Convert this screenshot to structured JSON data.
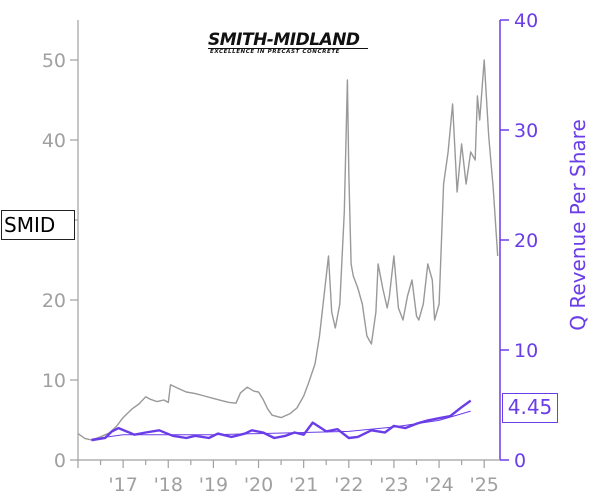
{
  "ticker": "SMID",
  "latest_value_label": "4.45",
  "logo": {
    "name": "SMITH-MIDLAND",
    "tagline": "EXCELLENCE IN PRECAST CONCRETE"
  },
  "colors": {
    "price_line": "#999999",
    "revenue_line": "#6a3de8",
    "revenue_trend": "#6a3de8",
    "left_axis": "#a0a0a0",
    "right_axis": "#6a3de8"
  },
  "chart_data": {
    "type": "line",
    "title": "",
    "xlabel": "",
    "ylabel_left": "",
    "ylabel_right": "Q Revenue Per Share",
    "x_ticks": [
      "'17",
      "'18",
      "'19",
      "'20",
      "'21",
      "'22",
      "'23",
      "'24",
      "'25"
    ],
    "x_tick_years": [
      2017,
      2018,
      2019,
      2020,
      2021,
      2022,
      2023,
      2024,
      2025
    ],
    "xlim": [
      2016.0,
      2025.35
    ],
    "y_left_ticks": [
      0,
      10,
      20,
      30,
      40,
      50
    ],
    "y_left_lim": [
      0,
      55
    ],
    "y_right_ticks": [
      0,
      10,
      20,
      30,
      40
    ],
    "y_right_lim": [
      0,
      40
    ],
    "grid": false,
    "series": [
      {
        "name": "SMID",
        "axis": "left",
        "x": [
          2016.0,
          2016.15,
          2016.3,
          2016.5,
          2016.7,
          2016.85,
          2017.0,
          2017.2,
          2017.35,
          2017.5,
          2017.6,
          2017.75,
          2017.9,
          2018.0,
          2018.05,
          2018.2,
          2018.4,
          2018.6,
          2018.8,
          2019.0,
          2019.2,
          2019.35,
          2019.5,
          2019.6,
          2019.75,
          2019.9,
          2020.0,
          2020.1,
          2020.2,
          2020.3,
          2020.5,
          2020.7,
          2020.85,
          2021.0,
          2021.1,
          2021.25,
          2021.35,
          2021.45,
          2021.55,
          2021.62,
          2021.7,
          2021.8,
          2021.9,
          2021.97,
          2022.0,
          2022.05,
          2022.1,
          2022.2,
          2022.3,
          2022.4,
          2022.5,
          2022.6,
          2022.65,
          2022.75,
          2022.85,
          2022.9,
          2023.0,
          2023.1,
          2023.2,
          2023.3,
          2023.4,
          2023.5,
          2023.55,
          2023.65,
          2023.75,
          2023.85,
          2023.9,
          2024.0,
          2024.1,
          2024.2,
          2024.3,
          2024.4,
          2024.5,
          2024.6,
          2024.7,
          2024.8,
          2024.85,
          2024.9,
          2025.0,
          2025.1,
          2025.2,
          2025.3
        ],
        "values": [
          3.3,
          2.7,
          2.5,
          2.9,
          3.4,
          4.2,
          5.3,
          6.4,
          7.0,
          7.9,
          7.6,
          7.3,
          7.5,
          7.2,
          9.4,
          9.0,
          8.5,
          8.3,
          8.0,
          7.7,
          7.4,
          7.2,
          7.1,
          8.4,
          9.1,
          8.6,
          8.5,
          7.6,
          6.4,
          5.6,
          5.3,
          5.8,
          6.5,
          8.0,
          9.5,
          12.0,
          15.5,
          20.5,
          25.5,
          18.5,
          16.5,
          19.5,
          31.0,
          47.5,
          36.0,
          24.5,
          23.0,
          21.5,
          19.5,
          15.5,
          14.5,
          18.5,
          24.5,
          21.5,
          19.0,
          20.5,
          25.5,
          19.0,
          17.5,
          20.5,
          22.5,
          18.0,
          17.5,
          19.5,
          24.5,
          22.5,
          17.5,
          19.5,
          34.5,
          38.5,
          44.5,
          33.5,
          39.5,
          34.5,
          38.5,
          37.5,
          45.5,
          42.5,
          50.0,
          40.5,
          34.0,
          25.5
        ]
      },
      {
        "name": "Q Revenue Per Share",
        "axis": "right",
        "x": [
          2016.3,
          2016.6,
          2016.75,
          2016.9,
          2017.25,
          2017.5,
          2017.8,
          2018.1,
          2018.4,
          2018.6,
          2018.9,
          2019.1,
          2019.4,
          2019.7,
          2019.85,
          2020.1,
          2020.35,
          2020.6,
          2020.8,
          2021.0,
          2021.2,
          2021.5,
          2021.75,
          2022.0,
          2022.2,
          2022.5,
          2022.8,
          2023.0,
          2023.25,
          2023.5,
          2023.75,
          2024.0,
          2024.25,
          2024.5,
          2024.7
        ],
        "values": [
          1.8,
          2.0,
          2.6,
          2.9,
          2.3,
          2.5,
          2.7,
          2.2,
          2.0,
          2.2,
          2.0,
          2.4,
          2.1,
          2.4,
          2.7,
          2.5,
          2.0,
          2.2,
          2.5,
          2.3,
          3.4,
          2.6,
          2.8,
          2.0,
          2.1,
          2.7,
          2.5,
          3.1,
          2.9,
          3.3,
          3.6,
          3.8,
          4.0,
          4.8,
          5.4
        ]
      },
      {
        "name": "Q Revenue Per Share Trend",
        "axis": "right",
        "x": [
          2016.3,
          2017.0,
          2018.0,
          2019.0,
          2020.0,
          2021.0,
          2022.0,
          2023.0,
          2024.0,
          2024.7
        ],
        "values": [
          1.9,
          2.3,
          2.3,
          2.3,
          2.4,
          2.5,
          2.6,
          3.0,
          3.6,
          4.45
        ]
      }
    ]
  }
}
